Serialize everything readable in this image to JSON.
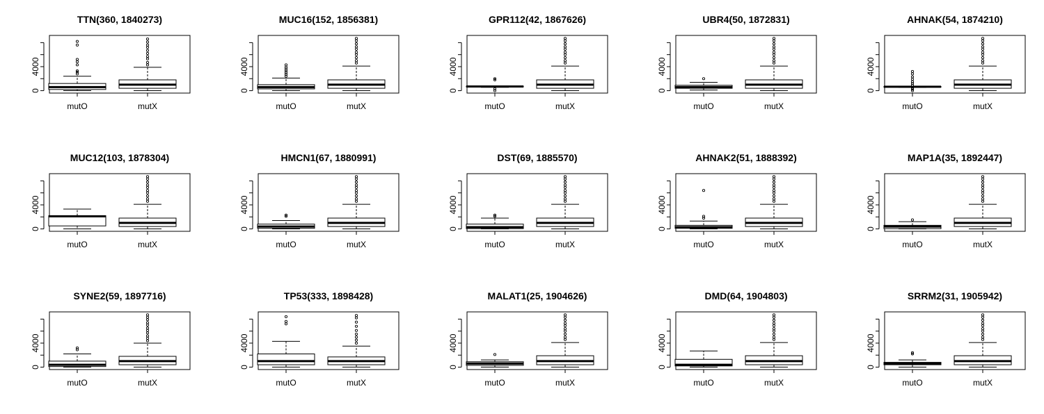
{
  "chart_data": [
    {
      "type": "box",
      "title": "TTN(360, 1840273)",
      "categories": [
        "mutO",
        "mutX"
      ],
      "yticks": [
        0,
        4000
      ],
      "ylim": [
        -400,
        9200
      ],
      "series": [
        {
          "name": "mutO",
          "min": 0,
          "q1": 200,
          "median": 600,
          "q3": 1200,
          "max": 2400,
          "outliers": [
            2800,
            3100,
            3300,
            4300,
            4800,
            5200,
            7600,
            8200
          ]
        },
        {
          "name": "mutX",
          "min": 0,
          "q1": 400,
          "median": 1000,
          "q3": 1800,
          "max": 3900,
          "outliers": [
            4300,
            4700,
            5300,
            5700,
            6200,
            6700,
            7200,
            7600,
            8100,
            8600
          ]
        }
      ]
    },
    {
      "type": "box",
      "title": "MUC16(152, 1856381)",
      "categories": [
        "mutO",
        "mutX"
      ],
      "yticks": [
        0,
        4000
      ],
      "ylim": [
        -400,
        9200
      ],
      "series": [
        {
          "name": "mutO",
          "min": 0,
          "q1": 300,
          "median": 600,
          "q3": 1000,
          "max": 2100,
          "outliers": [
            2400,
            2700,
            3000,
            3300,
            3600,
            3900,
            4300
          ]
        },
        {
          "name": "mutX",
          "min": 0,
          "q1": 400,
          "median": 1000,
          "q3": 1800,
          "max": 4100,
          "outliers": [
            4600,
            5000,
            5500,
            6000,
            6400,
            6900,
            7300,
            7800,
            8300,
            8700
          ]
        }
      ]
    },
    {
      "type": "box",
      "title": "GPR112(42, 1867626)",
      "categories": [
        "mutO",
        "mutX"
      ],
      "yticks": [
        0,
        4000
      ],
      "ylim": [
        -400,
        9200
      ],
      "series": [
        {
          "name": "mutO",
          "min": 550,
          "q1": 650,
          "median": 700,
          "q3": 750,
          "max": 800,
          "outliers": [
            0,
            300,
            1800,
            2000
          ]
        },
        {
          "name": "mutX",
          "min": 0,
          "q1": 400,
          "median": 1000,
          "q3": 1800,
          "max": 4100,
          "outliers": [
            4600,
            5000,
            5500,
            6000,
            6400,
            6900,
            7300,
            7800,
            8300,
            8700
          ]
        }
      ]
    },
    {
      "type": "box",
      "title": "UBR4(50, 1872831)",
      "categories": [
        "mutO",
        "mutX"
      ],
      "yticks": [
        0,
        4000
      ],
      "ylim": [
        -400,
        9200
      ],
      "series": [
        {
          "name": "mutO",
          "min": 100,
          "q1": 400,
          "median": 600,
          "q3": 900,
          "max": 1400,
          "outliers": [
            2000
          ]
        },
        {
          "name": "mutX",
          "min": 0,
          "q1": 400,
          "median": 1000,
          "q3": 1800,
          "max": 4100,
          "outliers": [
            4600,
            5000,
            5500,
            6000,
            6400,
            6900,
            7300,
            7800,
            8300,
            8700
          ]
        }
      ]
    },
    {
      "type": "box",
      "title": "AHNAK(54, 1874210)",
      "categories": [
        "mutO",
        "mutX"
      ],
      "yticks": [
        0,
        4000
      ],
      "ylim": [
        -400,
        9200
      ],
      "series": [
        {
          "name": "mutO",
          "min": 550,
          "q1": 600,
          "median": 650,
          "q3": 700,
          "max": 750,
          "outliers": [
            0,
            250,
            400,
            900,
            1200,
            1500,
            1900,
            2300,
            2800,
            3200
          ]
        },
        {
          "name": "mutX",
          "min": 0,
          "q1": 400,
          "median": 1000,
          "q3": 1800,
          "max": 4100,
          "outliers": [
            4600,
            5000,
            5500,
            6000,
            6400,
            6900,
            7300,
            7800,
            8300,
            8700
          ]
        }
      ]
    },
    {
      "type": "box",
      "title": "MUC12(103, 1878304)",
      "categories": [
        "mutO",
        "mutX"
      ],
      "yticks": [
        0,
        4000
      ],
      "ylim": [
        -400,
        9200
      ],
      "series": [
        {
          "name": "mutO",
          "min": 0,
          "q1": 500,
          "median": 2100,
          "q3": 2200,
          "max": 3300,
          "outliers": []
        },
        {
          "name": "mutX",
          "min": 0,
          "q1": 400,
          "median": 1000,
          "q3": 1800,
          "max": 4100,
          "outliers": [
            4600,
            5000,
            5500,
            6000,
            6400,
            6900,
            7300,
            7800,
            8300,
            8700
          ]
        }
      ]
    },
    {
      "type": "box",
      "title": "HMCN1(67, 1880991)",
      "categories": [
        "mutO",
        "mutX"
      ],
      "yticks": [
        0,
        4000
      ],
      "ylim": [
        -400,
        9200
      ],
      "series": [
        {
          "name": "mutO",
          "min": 0,
          "q1": 100,
          "median": 400,
          "q3": 800,
          "max": 1400,
          "outliers": [
            2100,
            2300
          ]
        },
        {
          "name": "mutX",
          "min": 0,
          "q1": 400,
          "median": 1000,
          "q3": 1800,
          "max": 4100,
          "outliers": [
            4600,
            5000,
            5500,
            6000,
            6400,
            6900,
            7300,
            7800,
            8300,
            8700
          ]
        }
      ]
    },
    {
      "type": "box",
      "title": "DST(69, 1885570)",
      "categories": [
        "mutO",
        "mutX"
      ],
      "yticks": [
        0,
        4000
      ],
      "ylim": [
        -400,
        9200
      ],
      "series": [
        {
          "name": "mutO",
          "min": 0,
          "q1": 50,
          "median": 300,
          "q3": 800,
          "max": 1800,
          "outliers": [
            2100,
            2300
          ]
        },
        {
          "name": "mutX",
          "min": 0,
          "q1": 400,
          "median": 1000,
          "q3": 1800,
          "max": 4100,
          "outliers": [
            4600,
            5000,
            5500,
            6000,
            6400,
            6900,
            7300,
            7800,
            8300,
            8700
          ]
        }
      ]
    },
    {
      "type": "box",
      "title": "AHNAK2(51, 1888392)",
      "categories": [
        "mutO",
        "mutX"
      ],
      "yticks": [
        0,
        4000
      ],
      "ylim": [
        -400,
        9200
      ],
      "series": [
        {
          "name": "mutO",
          "min": 0,
          "q1": 100,
          "median": 300,
          "q3": 600,
          "max": 1300,
          "outliers": [
            1800,
            2100,
            6400
          ]
        },
        {
          "name": "mutX",
          "min": 0,
          "q1": 400,
          "median": 1000,
          "q3": 1800,
          "max": 4100,
          "outliers": [
            4600,
            5000,
            5500,
            6000,
            6400,
            6900,
            7300,
            7800,
            8300,
            8700
          ]
        }
      ]
    },
    {
      "type": "box",
      "title": "MAP1A(35, 1892447)",
      "categories": [
        "mutO",
        "mutX"
      ],
      "yticks": [
        0,
        4000
      ],
      "ylim": [
        -400,
        9200
      ],
      "series": [
        {
          "name": "mutO",
          "min": 0,
          "q1": 50,
          "median": 400,
          "q3": 600,
          "max": 1200,
          "outliers": [
            1500
          ]
        },
        {
          "name": "mutX",
          "min": 0,
          "q1": 400,
          "median": 1000,
          "q3": 1800,
          "max": 4100,
          "outliers": [
            4600,
            5000,
            5500,
            6000,
            6400,
            6900,
            7300,
            7800,
            8300,
            8700
          ]
        }
      ]
    },
    {
      "type": "box",
      "title": "SYNE2(59, 1897716)",
      "categories": [
        "mutO",
        "mutX"
      ],
      "yticks": [
        0,
        4000
      ],
      "ylim": [
        -400,
        9200
      ],
      "series": [
        {
          "name": "mutO",
          "min": 0,
          "q1": 100,
          "median": 400,
          "q3": 1000,
          "max": 2200,
          "outliers": [
            2900,
            3200
          ]
        },
        {
          "name": "mutX",
          "min": 0,
          "q1": 400,
          "median": 1000,
          "q3": 1800,
          "max": 4000,
          "outliers": [
            4400,
            4800,
            5200,
            5700,
            6100,
            6500,
            7000,
            7400,
            7900,
            8300,
            8700
          ]
        }
      ]
    },
    {
      "type": "box",
      "title": "TP53(333, 1898428)",
      "categories": [
        "mutO",
        "mutX"
      ],
      "yticks": [
        0,
        4000
      ],
      "ylim": [
        -400,
        9200
      ],
      "series": [
        {
          "name": "mutO",
          "min": 0,
          "q1": 400,
          "median": 1000,
          "q3": 2200,
          "max": 4300,
          "outliers": [
            7200,
            7600,
            8400
          ]
        },
        {
          "name": "mutX",
          "min": 0,
          "q1": 400,
          "median": 1000,
          "q3": 1700,
          "max": 3500,
          "outliers": [
            4000,
            4500,
            5000,
            5500,
            6100,
            6800,
            7500,
            8200,
            8600
          ]
        }
      ]
    },
    {
      "type": "box",
      "title": "MALAT1(25, 1904626)",
      "categories": [
        "mutO",
        "mutX"
      ],
      "yticks": [
        0,
        4000
      ],
      "ylim": [
        -400,
        9200
      ],
      "series": [
        {
          "name": "mutO",
          "min": 0,
          "q1": 300,
          "median": 600,
          "q3": 900,
          "max": 1200,
          "outliers": [
            2100
          ]
        },
        {
          "name": "mutX",
          "min": 0,
          "q1": 400,
          "median": 1000,
          "q3": 1900,
          "max": 4100,
          "outliers": [
            4600,
            5000,
            5500,
            6000,
            6400,
            6900,
            7300,
            7800,
            8300,
            8700
          ]
        }
      ]
    },
    {
      "type": "box",
      "title": "DMD(64, 1904803)",
      "categories": [
        "mutO",
        "mutX"
      ],
      "yticks": [
        0,
        4000
      ],
      "ylim": [
        -400,
        9200
      ],
      "series": [
        {
          "name": "mutO",
          "min": 0,
          "q1": 200,
          "median": 400,
          "q3": 1300,
          "max": 2700,
          "outliers": []
        },
        {
          "name": "mutX",
          "min": 0,
          "q1": 400,
          "median": 1000,
          "q3": 1900,
          "max": 4100,
          "outliers": [
            4600,
            5000,
            5500,
            6000,
            6400,
            6900,
            7300,
            7800,
            8300,
            8700
          ]
        }
      ]
    },
    {
      "type": "box",
      "title": "SRRM2(31, 1905942)",
      "categories": [
        "mutO",
        "mutX"
      ],
      "yticks": [
        0,
        4000
      ],
      "ylim": [
        -400,
        9200
      ],
      "series": [
        {
          "name": "mutO",
          "min": 0,
          "q1": 400,
          "median": 600,
          "q3": 800,
          "max": 1200,
          "outliers": [
            2200,
            2400
          ]
        },
        {
          "name": "mutX",
          "min": 0,
          "q1": 400,
          "median": 1000,
          "q3": 1900,
          "max": 4100,
          "outliers": [
            4600,
            5000,
            5500,
            6000,
            6400,
            6900,
            7300,
            7800,
            8300,
            8700
          ]
        }
      ]
    }
  ]
}
